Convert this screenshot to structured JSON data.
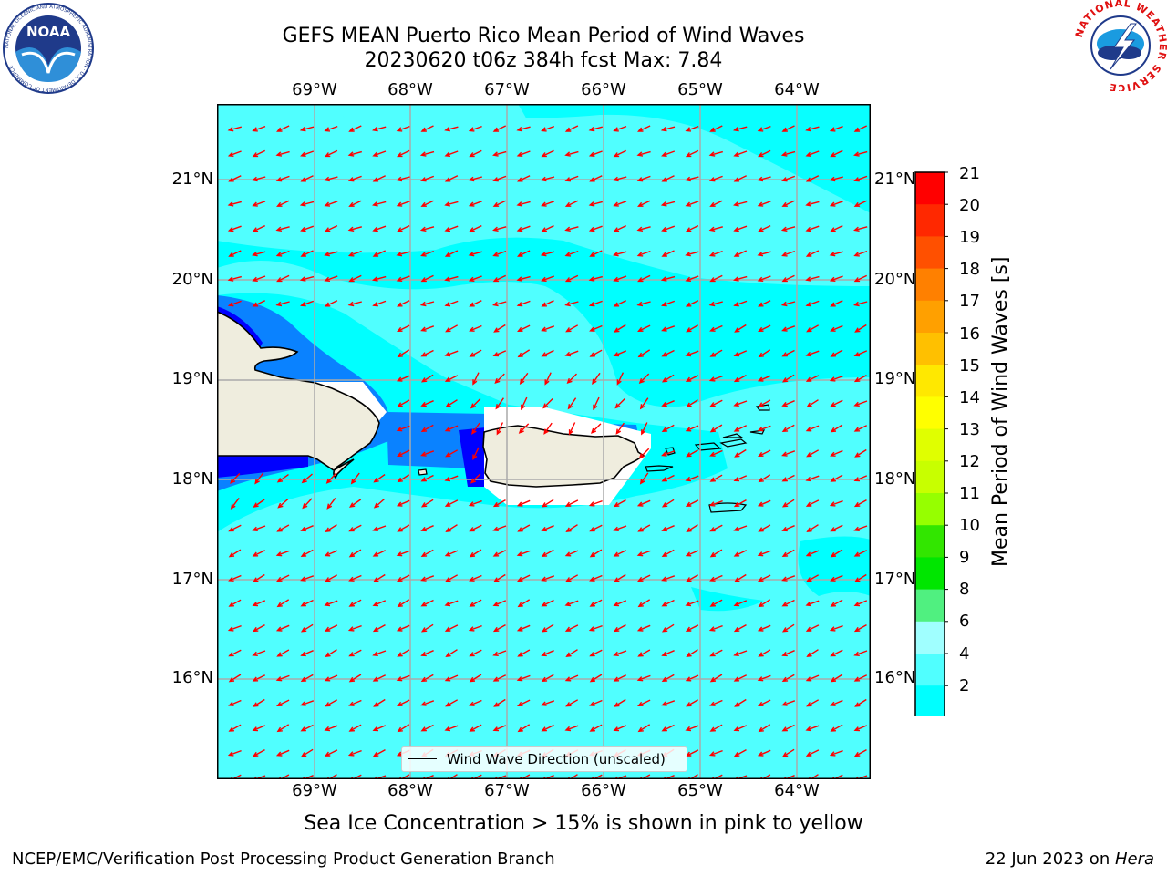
{
  "title": {
    "line1": "GEFS MEAN Puerto Rico Mean Period of Wind Waves",
    "line2": "20230620 t06z 384h fcst   Max: 7.84"
  },
  "map": {
    "lon_labels": [
      "69°W",
      "68°W",
      "67°W",
      "66°W",
      "65°W",
      "64°W"
    ],
    "lat_labels": [
      "21°N",
      "20°N",
      "19°N",
      "18°N",
      "17°N",
      "16°N"
    ],
    "land_color": "#efedde",
    "ocean_color": "#00ffff"
  },
  "colorbar": {
    "label": "Mean Period of Wind Waves [s]",
    "ticks": [
      "21",
      "20",
      "19",
      "18",
      "17",
      "16",
      "15",
      "14",
      "13",
      "12",
      "11",
      "10",
      "9",
      "8",
      "6",
      "4",
      "2"
    ],
    "colors": [
      "#ff0000",
      "#ff2800",
      "#ff5000",
      "#ff8000",
      "#ffa000",
      "#ffc000",
      "#ffe800",
      "#ffff00",
      "#e0ff00",
      "#c8ff00",
      "#96ff00",
      "#32e600",
      "#00e600",
      "#50f080",
      "#a0ffff",
      "#50ffff",
      "#00ffff",
      "#0a82ff",
      "#0000ff"
    ]
  },
  "legend": {
    "label": "Wind Wave Direction (unscaled)"
  },
  "caption": "Sea Ice Concentration > 15% is shown in pink to yellow",
  "footer": {
    "left": "NCEP/EMC/Verification Post Processing Product Generation Branch",
    "date": "22 Jun 2023 on ",
    "host": "Hera"
  },
  "logos": {
    "noaa_text": "NOAA",
    "noaa_ring": "NATIONAL OCEANIC AND ATMOSPHERIC ADMINISTRATION · U.S. DEPARTMENT OF COMMERCE",
    "nws_ring": "NATIONAL WEATHER SERVICE"
  },
  "arrow_color": "#ff0000"
}
